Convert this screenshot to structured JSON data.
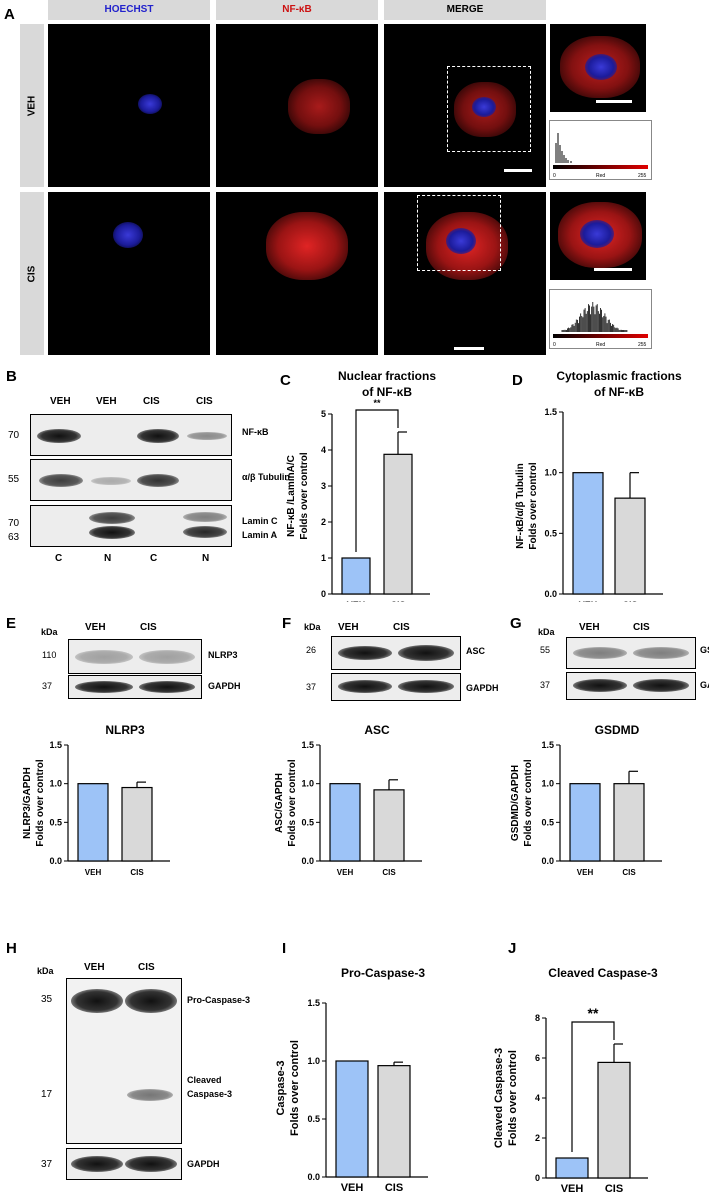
{
  "panels": {
    "a": "A",
    "b": "B",
    "c": "C",
    "d": "D",
    "e": "E",
    "f": "F",
    "g": "G",
    "h": "H",
    "i": "I",
    "j": "J"
  },
  "microscopy": {
    "columns": [
      "HOECHST",
      "NF-κB",
      "MERGE"
    ],
    "rows": [
      "VEH",
      "CIS"
    ],
    "column_colors": [
      "#2222cc",
      "#cc1111",
      "#000000"
    ],
    "histogram": {
      "label": "Red",
      "min": "0",
      "max": "255"
    }
  },
  "blot_b": {
    "lanes": [
      "VEH",
      "VEH",
      "CIS",
      "CIS"
    ],
    "fractions": [
      "C",
      "N",
      "C",
      "N"
    ],
    "mw": [
      "70",
      "55",
      "70",
      "63"
    ],
    "labels": [
      "NF-κB",
      "α/β Tubulin",
      "Lamin C",
      "Lamin A"
    ]
  },
  "blot_e": {
    "kda": "kDa",
    "lanes": [
      "VEH",
      "CIS"
    ],
    "mw": [
      "110",
      "37"
    ],
    "labels": [
      "NLRP3",
      "GAPDH"
    ]
  },
  "blot_f": {
    "kda": "kDa",
    "lanes": [
      "VEH",
      "CIS"
    ],
    "mw": [
      "26",
      "37"
    ],
    "labels": [
      "ASC",
      "GAPDH"
    ]
  },
  "blot_g": {
    "kda": "kDa",
    "lanes": [
      "VEH",
      "CIS"
    ],
    "mw": [
      "55",
      "37"
    ],
    "labels": [
      "GSDMD",
      "GAPDH"
    ]
  },
  "blot_h": {
    "kda": "kDa",
    "lanes": [
      "VEH",
      "CIS"
    ],
    "mw": [
      "35",
      "17",
      "37"
    ],
    "labels": [
      "Pro-Caspase-3",
      "Cleaved",
      "Caspase-3",
      "GAPDH"
    ]
  },
  "colors": {
    "veh": "#9dc3f7",
    "cis": "#d9d9d9"
  },
  "chart_data": [
    {
      "id": "C",
      "type": "bar",
      "title": [
        "Nuclear fractions",
        "of NF-κB"
      ],
      "categories": [
        "VEH",
        "CIS"
      ],
      "values": [
        1,
        3.88
      ],
      "errors": [
        0,
        0.62
      ],
      "ylabel": [
        "NF-κB /LaminA/C",
        "Folds over control"
      ],
      "ylim": [
        0,
        5
      ],
      "ticks": [
        "0",
        "1",
        "2",
        "3",
        "4",
        "5"
      ],
      "sig": "**"
    },
    {
      "id": "D",
      "type": "bar",
      "title": [
        "Cytoplasmic fractions",
        "of NF-κB"
      ],
      "categories": [
        "VEH",
        "CIS"
      ],
      "values": [
        1,
        0.79
      ],
      "errors": [
        0,
        0.21
      ],
      "ylabel": [
        "NF-κB/α/β Tubulin",
        "Folds over control"
      ],
      "ylim": [
        0,
        1.5
      ],
      "ticks": [
        "0.0",
        "0.5",
        "1.0",
        "1.5"
      ],
      "sig": ""
    },
    {
      "id": "E",
      "type": "bar",
      "title": [
        "NLRP3"
      ],
      "categories": [
        "VEH",
        "CIS"
      ],
      "values": [
        1,
        0.95
      ],
      "errors": [
        0,
        0.07
      ],
      "ylabel": [
        "NLRP3/GAPDH",
        "Folds over control"
      ],
      "ylim": [
        0,
        1.5
      ],
      "ticks": [
        "0.0",
        "0.5",
        "1.0",
        "1.5"
      ],
      "sig": ""
    },
    {
      "id": "F",
      "type": "bar",
      "title": [
        "ASC"
      ],
      "categories": [
        "VEH",
        "CIS"
      ],
      "values": [
        1,
        0.92
      ],
      "errors": [
        0,
        0.13
      ],
      "ylabel": [
        "ASC/GAPDH",
        "Folds over control"
      ],
      "ylim": [
        0,
        1.5
      ],
      "ticks": [
        "0.0",
        "0.5",
        "1.0",
        "1.5"
      ],
      "sig": ""
    },
    {
      "id": "G",
      "type": "bar",
      "title": [
        "GSDMD"
      ],
      "categories": [
        "VEH",
        "CIS"
      ],
      "values": [
        1,
        1.0
      ],
      "errors": [
        0,
        0.16
      ],
      "ylabel": [
        "GSDMD/GAPDH",
        "Folds over control"
      ],
      "ylim": [
        0,
        1.5
      ],
      "ticks": [
        "0.0",
        "0.5",
        "1.0",
        "1.5"
      ],
      "sig": ""
    },
    {
      "id": "I",
      "type": "bar",
      "title": [
        "Pro-Caspase-3"
      ],
      "categories": [
        "VEH",
        "CIS"
      ],
      "values": [
        1,
        0.96
      ],
      "errors": [
        0,
        0.03
      ],
      "ylabel": [
        "Caspase-3",
        "Folds over control"
      ],
      "ylim": [
        0,
        1.5
      ],
      "ticks": [
        "0.0",
        "0.5",
        "1.0",
        "1.5"
      ],
      "sig": ""
    },
    {
      "id": "J",
      "type": "bar",
      "title": [
        "Cleaved Caspase-3"
      ],
      "categories": [
        "VEH",
        "CIS"
      ],
      "values": [
        1,
        5.78
      ],
      "errors": [
        0,
        0.92
      ],
      "ylabel": [
        "Cleaved Caspase-3",
        "Folds over control"
      ],
      "ylim": [
        0,
        8
      ],
      "ticks": [
        "0",
        "2",
        "4",
        "6",
        "8"
      ],
      "sig": "**"
    }
  ]
}
